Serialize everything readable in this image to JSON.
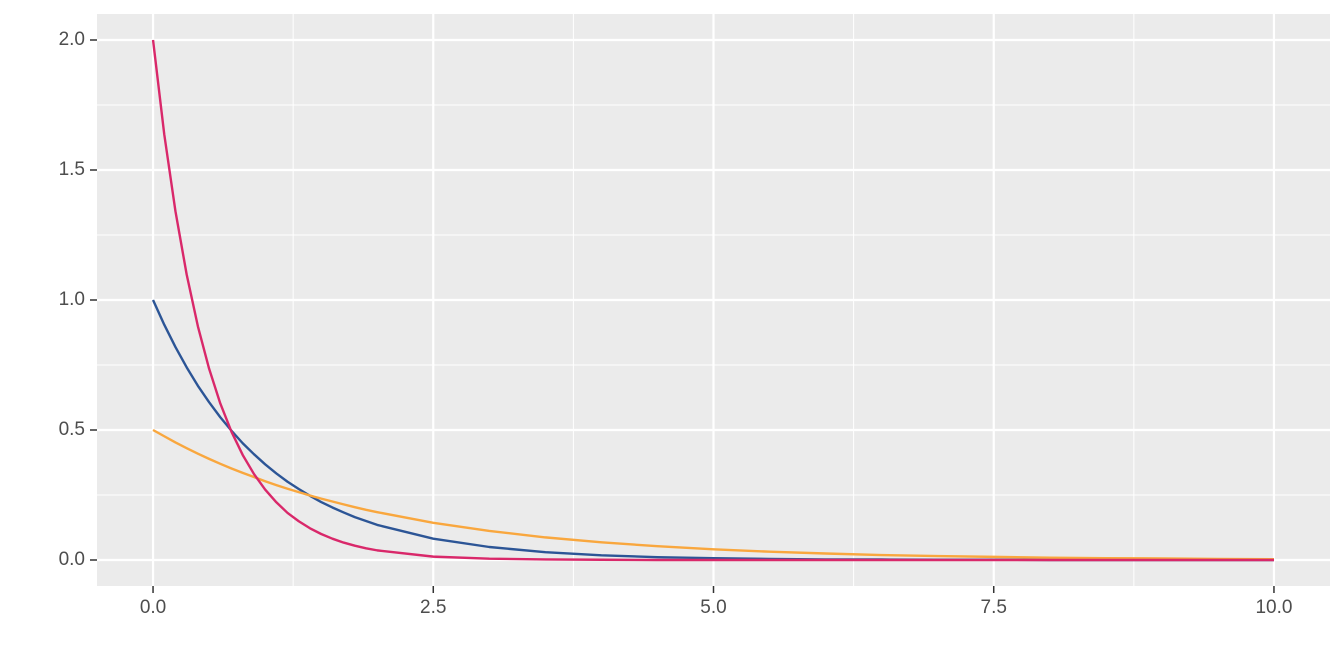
{
  "chart_data": {
    "type": "line",
    "x": [
      0,
      0.1,
      0.2,
      0.3,
      0.4,
      0.5,
      0.6,
      0.7,
      0.8,
      0.9,
      1.0,
      1.1,
      1.2,
      1.3,
      1.4,
      1.5,
      1.6,
      1.7,
      1.8,
      1.9,
      2.0,
      2.5,
      3,
      3.5,
      4,
      4.5,
      5,
      5.5,
      6,
      6.5,
      7,
      7.5,
      8,
      8.5,
      9,
      9.5,
      10
    ],
    "series": [
      {
        "color": "#2c5596",
        "values": [
          1,
          0.905,
          0.819,
          0.741,
          0.67,
          0.607,
          0.549,
          0.497,
          0.449,
          0.407,
          0.368,
          0.333,
          0.301,
          0.273,
          0.247,
          0.223,
          0.202,
          0.183,
          0.165,
          0.15,
          0.135,
          0.082,
          0.05,
          0.03,
          0.018,
          0.011,
          0.007,
          0.004,
          0.002,
          0.002,
          0.001,
          0.001,
          0,
          0,
          0,
          0,
          0
        ]
      },
      {
        "color": "#f9a73e",
        "values": [
          0.5,
          0.476,
          0.452,
          0.43,
          0.409,
          0.389,
          0.37,
          0.352,
          0.335,
          0.319,
          0.303,
          0.288,
          0.274,
          0.261,
          0.248,
          0.236,
          0.225,
          0.214,
          0.203,
          0.193,
          0.184,
          0.143,
          0.112,
          0.087,
          0.068,
          0.053,
          0.041,
          0.032,
          0.025,
          0.019,
          0.015,
          0.012,
          0.009,
          0.007,
          0.006,
          0.004,
          0.003
        ]
      },
      {
        "color": "#d9286a",
        "values": [
          2,
          1.637,
          1.341,
          1.098,
          0.899,
          0.736,
          0.602,
          0.493,
          0.404,
          0.331,
          0.271,
          0.222,
          0.181,
          0.149,
          0.122,
          0.1,
          0.082,
          0.067,
          0.055,
          0.045,
          0.037,
          0.013,
          0.005,
          0.002,
          0.001,
          0,
          0,
          0,
          0,
          0,
          0,
          0,
          0,
          0,
          0,
          0,
          0
        ]
      }
    ],
    "xlim": [
      -0.5,
      10.5
    ],
    "ylim": [
      -0.1,
      2.1
    ],
    "xticks": [
      {
        "value": 0,
        "label": "0.0"
      },
      2.5,
      {
        "value": 5,
        "label": "5.0"
      },
      7.5,
      {
        "value": 10,
        "label": "10.0"
      }
    ],
    "yticks": [
      {
        "value": 0,
        "label": "0.0"
      },
      0.5,
      {
        "value": 1,
        "label": "1.0"
      },
      1.5,
      {
        "value": 2,
        "label": "2.0"
      }
    ],
    "grid": true
  }
}
